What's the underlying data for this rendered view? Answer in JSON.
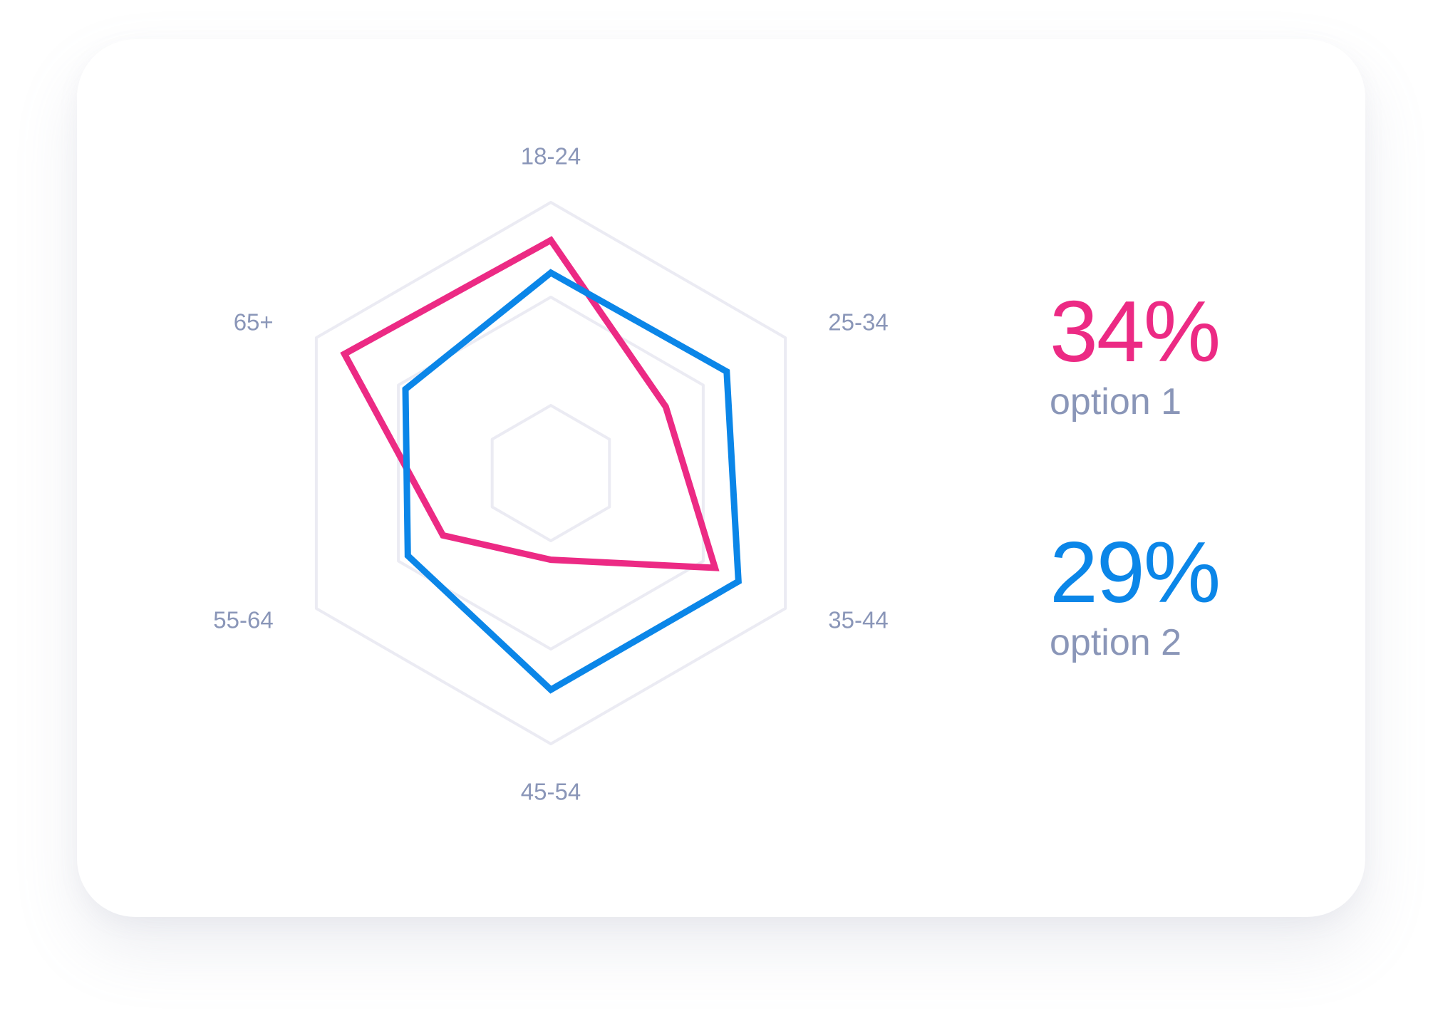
{
  "chart_data": {
    "type": "radar",
    "axes": [
      "18-24",
      "25-34",
      "35-44",
      "45-54",
      "55-64",
      "65+"
    ],
    "grid_levels": [
      0.25,
      0.65,
      1.0
    ],
    "range": [
      0,
      1
    ],
    "series": [
      {
        "name": "option 1",
        "color": "#ec2a84",
        "values": [
          0.86,
          0.49,
          0.7,
          0.32,
          0.46,
          0.88
        ]
      },
      {
        "name": "option 2",
        "color": "#0b86e8",
        "values": [
          0.74,
          0.75,
          0.8,
          0.8,
          0.61,
          0.62
        ]
      }
    ]
  },
  "summary": [
    {
      "value": "34%",
      "label": "option 1",
      "color": "#ec2a84"
    },
    {
      "value": "29%",
      "label": "option 2",
      "color": "#0b86e8"
    }
  ]
}
